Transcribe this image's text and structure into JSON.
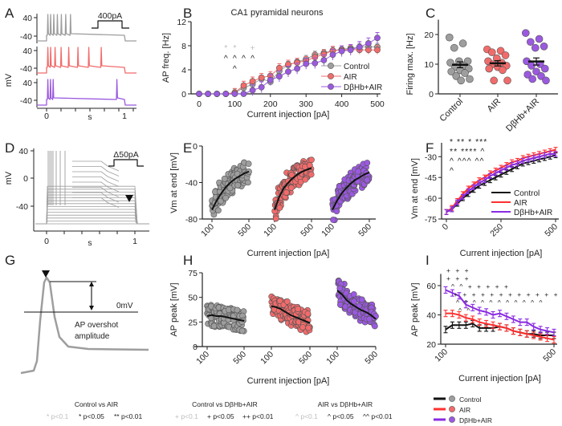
{
  "colors": {
    "control": "#9e9e9e",
    "control_dark": "#111111",
    "air": "#f26b6b",
    "air_line": "#ff3030",
    "dbhb": "#9b59e0",
    "dbhb_line": "#8a2be2",
    "sig_faint": "#bdbdbd"
  },
  "chart_data": [
    {
      "panel": "A",
      "type": "line",
      "ylabel": "mV",
      "xlabel": "s",
      "yticks": [
        "40",
        "-40"
      ],
      "xticks": [
        "0",
        "1"
      ],
      "stimulus_label": "400pA",
      "series": [
        {
          "name": "Control",
          "spikes": 7
        },
        {
          "name": "AIR",
          "spikes": 8
        },
        {
          "name": "DβHb+AIR",
          "spikes": 4
        }
      ]
    },
    {
      "panel": "B",
      "type": "line",
      "title": "CA1 pyramidal neurons",
      "xlabel": "Current injection [pA]",
      "ylabel": "AP freq. [Hz]",
      "xlim": [
        0,
        500
      ],
      "ylim": [
        0,
        12
      ],
      "xticks": [
        0,
        100,
        200,
        300,
        400,
        500
      ],
      "yticks": [
        0,
        4,
        8,
        12
      ],
      "legend": "bottom-right",
      "x": [
        0,
        25,
        50,
        75,
        100,
        125,
        150,
        175,
        200,
        225,
        250,
        275,
        300,
        325,
        350,
        375,
        400,
        425,
        450,
        475,
        500
      ],
      "series": [
        {
          "name": "Control",
          "values": [
            0,
            0,
            0,
            0,
            0.2,
            1,
            1.6,
            2.5,
            2,
            3.8,
            4.8,
            5.3,
            5.8,
            6.5,
            6.8,
            7.2,
            7.4,
            7.6,
            7.8,
            7.8,
            7.8
          ],
          "err": 0.6
        },
        {
          "name": "AIR",
          "values": [
            0,
            0,
            0,
            0,
            0.2,
            1.4,
            2.1,
            2.7,
            3,
            4.3,
            4.9,
            5.2,
            5.5,
            6.1,
            6.6,
            7.2,
            7.3,
            7.4,
            7.3,
            7.3,
            7.3
          ],
          "err": 0.7
        },
        {
          "name": "DβHb+AIR",
          "values": [
            0,
            0,
            0,
            0,
            0,
            0,
            0.6,
            1.1,
            2.3,
            2.9,
            3.7,
            4.2,
            5,
            5.1,
            5.6,
            6.5,
            7.1,
            7.3,
            7.8,
            8.4,
            9.3
          ],
          "err": 0.9
        }
      ],
      "markers": [
        {
          "x": 75,
          "sym": "*",
          "sig": "p<0.1"
        },
        {
          "x": 100,
          "sym": "*",
          "sig": "p<0.1"
        },
        {
          "x": 150,
          "sym": "+",
          "sig": "p<0.1"
        },
        {
          "x": 75,
          "sym": "^",
          "sig": "p<0.05"
        },
        {
          "x": 100,
          "sym": "^^",
          "sig": "p<0.01"
        },
        {
          "x": 125,
          "sym": "^",
          "sig": "p<0.05"
        },
        {
          "x": 150,
          "sym": "^",
          "sig": "p<0.05"
        }
      ]
    },
    {
      "panel": "C",
      "type": "scatter",
      "ylabel": "Firing max. [Hz]",
      "ylim": [
        0,
        25
      ],
      "yticks": [
        0,
        10,
        20
      ],
      "categories": [
        "Control",
        "AIR",
        "DβHb+AIR"
      ],
      "series": [
        {
          "name": "Control",
          "values": [
            19,
            17,
            15.5,
            11,
            11,
            10.5,
            9.5,
            9,
            8.5,
            8,
            7.5,
            7,
            6,
            5,
            4.5
          ],
          "mean": 9.8,
          "sem": 1.0
        },
        {
          "name": "AIR",
          "values": [
            15,
            14.5,
            14,
            13,
            12,
            11,
            10.5,
            10,
            9.5,
            9,
            8.5,
            8,
            4.5,
            4.5
          ],
          "mean": 10.3,
          "sem": 0.9
        },
        {
          "name": "DβHb+AIR",
          "values": [
            20.5,
            18.5,
            17.5,
            16,
            15.5,
            11,
            10,
            9.5,
            8.5,
            7.5,
            6.5,
            6,
            5,
            4.5
          ],
          "mean": 10.9,
          "sem": 1.2
        }
      ]
    },
    {
      "panel": "D",
      "type": "line",
      "ylabel": "mV",
      "xlabel": "s",
      "yticks": [
        "40",
        "0",
        "-40"
      ],
      "xticks": [
        "0",
        "1"
      ],
      "stimulus_label": "Δ50pA"
    },
    {
      "panel": "E",
      "type": "scatter",
      "xlabel": "Current injection [pA]",
      "ylabel": "Vm at end [mV]",
      "ylim": [
        -80,
        0
      ],
      "yticks": [
        0,
        -40,
        -80
      ],
      "xticks": [
        "100",
        "500"
      ],
      "x": [
        100,
        150,
        200,
        250,
        300,
        350,
        400,
        450,
        500
      ],
      "series": [
        {
          "name": "Control",
          "trend": [
            -70,
            -60,
            -52,
            -45,
            -40,
            -36,
            -33,
            -30,
            -28
          ]
        },
        {
          "name": "AIR",
          "trend": [
            -70,
            -56,
            -46,
            -40,
            -35,
            -31,
            -28,
            -26,
            -24
          ]
        },
        {
          "name": "DβHb+AIR",
          "trend": [
            -70,
            -60,
            -52,
            -46,
            -41,
            -37,
            -34,
            -31,
            -29
          ]
        }
      ]
    },
    {
      "panel": "F",
      "type": "line",
      "xlabel": "Current injection [pA]",
      "ylabel": "Vm at end [mV]",
      "xlim": [
        0,
        500
      ],
      "ylim": [
        -75,
        -20
      ],
      "xticks": [
        0,
        250,
        500
      ],
      "yticks": [
        -30,
        -45,
        -60,
        -75
      ],
      "legend": "bottom-right",
      "x": [
        0,
        25,
        50,
        75,
        100,
        125,
        150,
        175,
        200,
        225,
        250,
        275,
        300,
        325,
        350,
        375,
        400,
        425,
        450,
        475,
        500
      ],
      "series": [
        {
          "name": "Control",
          "values": [
            -70,
            -68,
            -64,
            -60,
            -57,
            -54,
            -51,
            -49,
            -47,
            -45,
            -43,
            -41,
            -39,
            -37,
            -35,
            -34,
            -33,
            -32,
            -31,
            -30,
            -29
          ]
        },
        {
          "name": "AIR",
          "values": [
            -70,
            -67,
            -62,
            -57,
            -53,
            -50,
            -47,
            -45,
            -42,
            -40,
            -38,
            -36,
            -34,
            -33,
            -31,
            -30,
            -29,
            -28,
            -27,
            -26,
            -25
          ]
        },
        {
          "name": "DβHb+AIR",
          "values": [
            -70,
            -68,
            -63,
            -59,
            -55,
            -52,
            -49,
            -47,
            -44,
            -42,
            -40,
            -38,
            -36,
            -35,
            -33,
            -32,
            -31,
            -30,
            -29,
            -28,
            -28
          ]
        }
      ],
      "marker_rows": [
        "* ** * ***",
        "** **** ^",
        "^ ^^^ ^^",
        "^"
      ]
    },
    {
      "panel": "G",
      "type": "diagram",
      "labels": [
        "0mV",
        "AP overshot",
        "amplitude"
      ]
    },
    {
      "panel": "H",
      "type": "scatter",
      "xlabel": "Current injection [pA]",
      "ylabel": "AP peak [mV]",
      "ylim": [
        0,
        75
      ],
      "yticks": [
        0,
        25,
        50,
        75
      ],
      "xticks": [
        "100",
        "500"
      ],
      "x": [
        100,
        150,
        200,
        250,
        300,
        350,
        400,
        450,
        500
      ],
      "series": [
        {
          "name": "Control",
          "trend": [
            31,
            32,
            31,
            31,
            30,
            29,
            28,
            27,
            26
          ]
        },
        {
          "name": "AIR",
          "trend": [
            41,
            40,
            38,
            35,
            32,
            30,
            28,
            26,
            24
          ]
        },
        {
          "name": "DβHb+AIR",
          "trend": [
            57,
            53,
            47,
            43,
            40,
            37,
            35,
            32,
            28
          ]
        }
      ]
    },
    {
      "panel": "I",
      "type": "line",
      "xlabel": "Current injection [pA]",
      "ylabel": "AP peak [mV]",
      "xlim": [
        100,
        500
      ],
      "ylim": [
        20,
        68
      ],
      "xticks": [
        100,
        500
      ],
      "yticks": [
        20,
        40,
        60
      ],
      "x": [
        100,
        125,
        150,
        175,
        200,
        225,
        250,
        275,
        300,
        325,
        350,
        375,
        400,
        425,
        450,
        475,
        500
      ],
      "series": [
        {
          "name": "Control",
          "values": [
            30,
            33,
            33,
            33,
            34,
            31,
            31,
            31,
            32,
            31,
            29,
            28,
            27,
            27,
            26,
            26,
            26
          ]
        },
        {
          "name": "AIR",
          "values": [
            41,
            41,
            40,
            38,
            37,
            35,
            34,
            33,
            32,
            31,
            29,
            28,
            27,
            26,
            25,
            24,
            23
          ]
        },
        {
          "name": "DβHb+AIR",
          "values": [
            57,
            55,
            53,
            47,
            45,
            43,
            42,
            40,
            41,
            39,
            37,
            35,
            35,
            32,
            30,
            29,
            28
          ]
        }
      ],
      "marker_rows": [
        "+ + +",
        "+ + +",
        "^ ^ + + + + +",
        "+ + + + + + + + + + + +",
        "^ ^ ^ ^ ^ ^ ^ ^ ^ ^ ^",
        "^ ^"
      ]
    }
  ],
  "panel_letters": [
    "A",
    "B",
    "C",
    "D",
    "E",
    "F",
    "G",
    "H",
    "I"
  ],
  "footer": {
    "groups": [
      {
        "title": "Control vs AIR",
        "faint": "* p<0.1",
        "sig1": "* p<0.05",
        "sig2": "** p<0.01"
      },
      {
        "title": "Control vs DβHb+AIR",
        "faint": "+ p<0.1",
        "sig1": "+ p<0.05",
        "sig2": "++ p<0.01"
      },
      {
        "title": "AIR vs DβHb+AIR",
        "faint": "^ p<0.1",
        "sig1": "^ p<0.05",
        "sig2": "^^ p<0.01"
      }
    ],
    "legend": [
      "Control",
      "AIR",
      "DβHb+AIR"
    ]
  }
}
